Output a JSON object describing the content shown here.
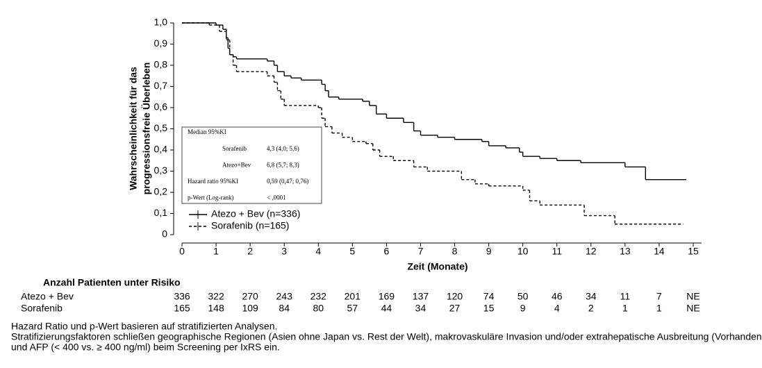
{
  "chart_data": {
    "type": "km",
    "xlabel": "Zeit (Monate)",
    "ylabel": [
      "Wahrscheinlichkeit für das",
      "progressionsfreie Überleben"
    ],
    "xlim": [
      0,
      15
    ],
    "xticks": [
      0,
      1,
      2,
      3,
      4,
      5,
      6,
      7,
      8,
      9,
      10,
      11,
      12,
      13,
      14,
      15
    ],
    "ylim": [
      0,
      1
    ],
    "yticks": [
      0,
      {
        "value": 0.1,
        "label": "0,1"
      },
      {
        "value": 0.2,
        "label": "0,2"
      },
      {
        "value": 0.3,
        "label": "0,3"
      },
      {
        "value": 0.4,
        "label": "0,4"
      },
      {
        "value": 0.5,
        "label": "0,5"
      },
      {
        "value": 0.6,
        "label": "0,6"
      },
      {
        "value": 0.7,
        "label": "0,7"
      },
      {
        "value": 0.8,
        "label": "0,8"
      },
      {
        "value": 0.9,
        "label": "0,9"
      },
      {
        "value": 1.0,
        "label": "1,0"
      }
    ],
    "series": [
      {
        "name": "Atezo + Bev  (n=336)",
        "color": "#000000",
        "dash": false,
        "x": [
          0,
          1.0,
          1.2,
          1.3,
          1.35,
          1.4,
          1.5,
          1.6,
          2.5,
          2.7,
          2.8,
          3.0,
          3.2,
          3.5,
          4.1,
          4.2,
          4.3,
          4.6,
          5.3,
          5.5,
          5.7,
          6.0,
          6.5,
          6.8,
          7.0,
          7.5,
          8.0,
          8.8,
          9.0,
          9.5,
          9.9,
          10.0,
          10.5,
          11.0,
          11.7,
          13.0,
          13.6,
          14.8
        ],
        "values": [
          1.0,
          0.99,
          0.97,
          0.93,
          0.88,
          0.85,
          0.84,
          0.83,
          0.82,
          0.8,
          0.77,
          0.75,
          0.74,
          0.73,
          0.71,
          0.68,
          0.65,
          0.64,
          0.63,
          0.61,
          0.57,
          0.55,
          0.53,
          0.49,
          0.47,
          0.46,
          0.45,
          0.44,
          0.42,
          0.41,
          0.39,
          0.37,
          0.36,
          0.35,
          0.34,
          0.32,
          0.26,
          0.26
        ]
      },
      {
        "name": "Sorafenib  (n=165)",
        "color": "#000000",
        "dash": true,
        "x": [
          0,
          0.8,
          1.1,
          1.3,
          1.4,
          1.5,
          1.6,
          2.5,
          2.7,
          2.8,
          2.9,
          3.0,
          4.0,
          4.1,
          4.2,
          4.4,
          4.7,
          5.0,
          5.4,
          5.6,
          5.8,
          6.2,
          6.8,
          7.2,
          8.2,
          8.6,
          9.0,
          10.0,
          10.2,
          10.5,
          11.8,
          12.7,
          14.7
        ],
        "values": [
          1.0,
          0.99,
          0.96,
          0.92,
          0.85,
          0.8,
          0.77,
          0.75,
          0.72,
          0.68,
          0.64,
          0.61,
          0.6,
          0.55,
          0.51,
          0.48,
          0.46,
          0.44,
          0.43,
          0.4,
          0.37,
          0.35,
          0.32,
          0.3,
          0.26,
          0.24,
          0.23,
          0.21,
          0.16,
          0.14,
          0.09,
          0.05,
          0.05
        ]
      }
    ],
    "inset": {
      "header": "Median   95%KI",
      "rows": [
        [
          "Sorafenib",
          "4,3 (4,0; 5,6)"
        ],
        [
          "Atezo+Bev",
          "6,8 (5,7; 8,3)"
        ],
        [
          "Hazard ratio   95%KI",
          "0,59 (0,47; 0,76)"
        ],
        [
          "p-Wert (Log-rank)",
          "< ,0001"
        ]
      ]
    },
    "risk_table": {
      "title": "Anzahl Patienten unter Risiko",
      "rows": [
        {
          "name": "Atezo + Bev",
          "values": [
            "336",
            "322",
            "270",
            "243",
            "232",
            "201",
            "169",
            "137",
            "120",
            "74",
            "50",
            "46",
            "34",
            "11",
            "7",
            "NE"
          ]
        },
        {
          "name": "Sorafenib",
          "values": [
            "165",
            "148",
            "109",
            "84",
            "80",
            "57",
            "44",
            "34",
            "27",
            "15",
            "9",
            "4",
            "2",
            "1",
            "1",
            "NE"
          ]
        }
      ]
    },
    "footnotes": [
      "Hazard Ratio und p-Wert basieren auf stratifizierten Analysen.",
      "Stratifizierungsfaktoren schließen geographische Regionen (Asien ohne Japan vs. Rest der Welt), makrovaskuläre Invasion und/oder extrahepatische Ausbreitung (Vorhandensein vs. Abwesenheit),",
      "und AFP  (< 400 vs. ≥ 400 ng/ml) beim Screening per IxRS ein."
    ]
  }
}
